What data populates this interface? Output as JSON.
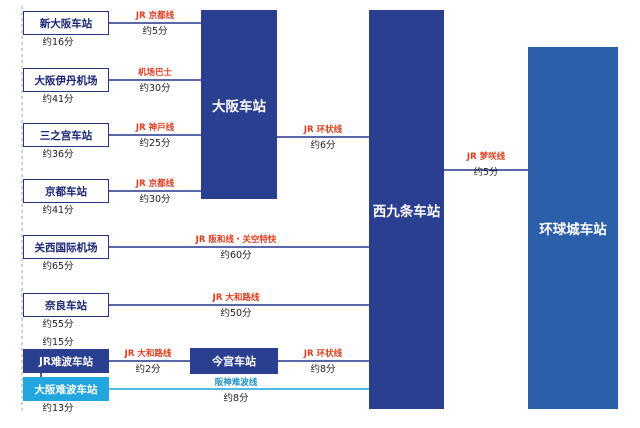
{
  "hubs": {
    "osaka": "大阪车站",
    "nishikujo": "西九条车站",
    "universal_city": "环球城车站",
    "imamiya": "今宫车站"
  },
  "origins": {
    "shin_osaka": {
      "name": "新大阪车站",
      "route": "JR 京都线",
      "time": "约5分",
      "from_label": "约16分"
    },
    "itami": {
      "name": "大阪伊丹机场",
      "route": "机场巴士",
      "time": "约30分",
      "from_label": "约41分"
    },
    "sannomiya": {
      "name": "三之宫车站",
      "route": "JR 神戸线",
      "time": "约25分",
      "from_label": "约36分"
    },
    "kyoto": {
      "name": "京都车站",
      "route": "JR 京都线",
      "time": "约30分",
      "from_label": "约41分"
    },
    "kansai": {
      "name": "关西国际机场",
      "route": "JR 阪和线・关空特快",
      "time": "约60分",
      "from_label": "约65分"
    },
    "nara": {
      "name": "奈良车站",
      "route": "JR 大和路线",
      "time": "约50分",
      "from_label": "约55分"
    },
    "jr_namba": {
      "name": "JR难波车站",
      "route": "JR 大和路线",
      "time": "约2分",
      "from_label": "约15分"
    },
    "osaka_namba": {
      "name": "大阪难波车站",
      "route": "阪神难波线",
      "time": "约8分",
      "from_label": "约13分"
    }
  },
  "connectors": {
    "osaka_nishikujo": {
      "route": "JR 环状线",
      "time": "约6分"
    },
    "imamiya_nishikujo": {
      "route": "JR 环状线",
      "time": "约8分"
    },
    "nishikujo_universal": {
      "route": "JR 梦咲线",
      "time": "约5分"
    }
  },
  "colors": {
    "navy": "#2b3f91",
    "terminal_blue": "#2c5faa",
    "cyan": "#22a6e0",
    "route_red": "#e03c1e"
  }
}
